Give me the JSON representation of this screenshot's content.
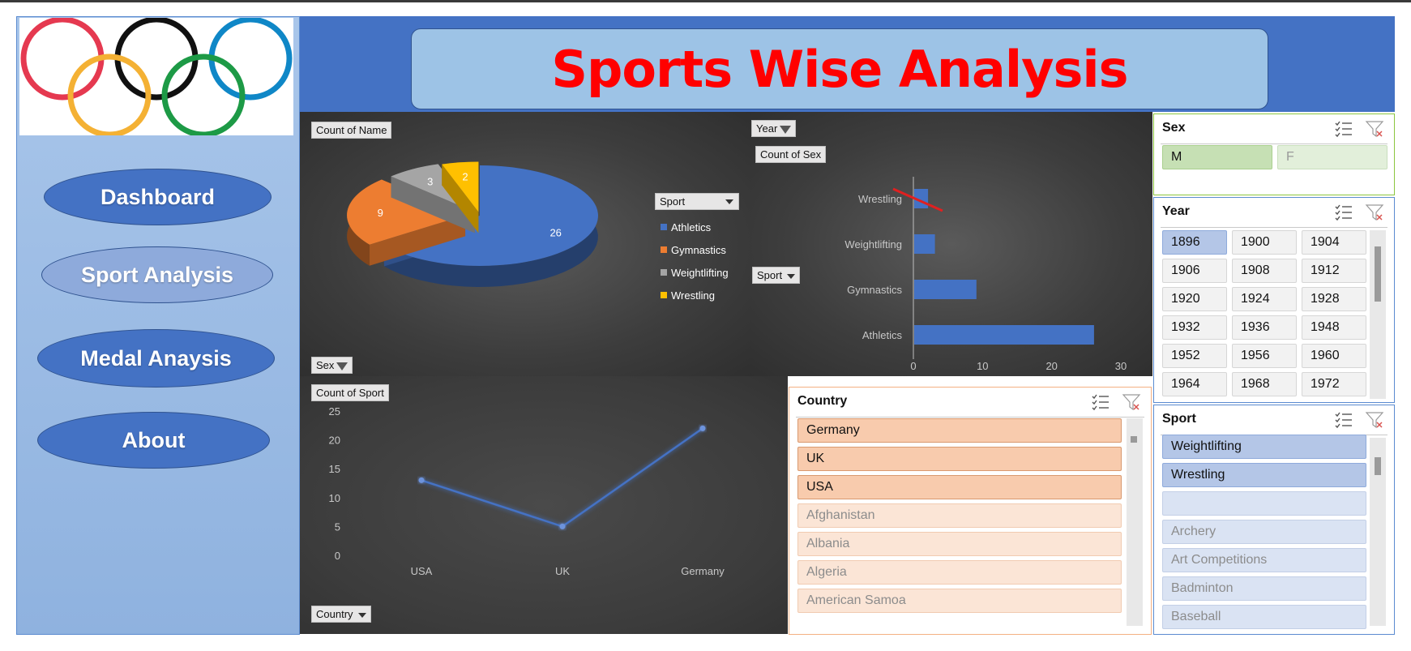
{
  "title": "Sports Wise Analysis",
  "nav": {
    "dashboard": "Dashboard",
    "sport_analysis": "Sport Analysis",
    "medal_analysis": "Medal Anaysis",
    "about": "About"
  },
  "icons": [
    "olympic-rings-logo",
    "multi-select-icon",
    "clear-filter-icon",
    "filter-icon",
    "dropdown-arrow-icon"
  ],
  "colors": {
    "accent": "#4472c4",
    "title": "#ff0000",
    "panel": "#9dc3e6",
    "country_selected": "#f8cbad",
    "sex_selected": "#c6e0b4",
    "sport_selected": "#b4c6e7"
  },
  "pie_panel": {
    "value_button": "Count of Name",
    "filter_button": "Sex",
    "legend_button": "Sport"
  },
  "bar_panel": {
    "filter_button": "Year",
    "value_button": "Count of Sex",
    "axis_button": "Sport"
  },
  "line_panel": {
    "value_button": "Count of Sport",
    "axis_button": "Country"
  },
  "chart_data": [
    {
      "type": "pie",
      "title": "",
      "categories": [
        "Athletics",
        "Gymnastics",
        "Weightlifting",
        "Wrestling"
      ],
      "values": [
        26,
        9,
        3,
        2
      ],
      "colors": [
        "#4472c4",
        "#ed7d31",
        "#a5a5a5",
        "#ffc000"
      ],
      "legend": "right"
    },
    {
      "type": "bar",
      "orientation": "horizontal",
      "categories": [
        "Athletics",
        "Gymnastics",
        "Weightlifting",
        "Wrestling"
      ],
      "values": [
        26,
        9,
        3,
        2
      ],
      "xlim": [
        0,
        30
      ],
      "xticks": [
        "0",
        "10",
        "20",
        "30"
      ]
    },
    {
      "type": "line",
      "categories": [
        "USA",
        "UK",
        "Germany"
      ],
      "values": [
        13,
        5,
        22
      ],
      "ylim": [
        0,
        25
      ],
      "yticks": [
        "0",
        "5",
        "10",
        "15",
        "20",
        "25"
      ]
    }
  ],
  "slicers": {
    "sex": {
      "title": "Sex",
      "items": [
        {
          "label": "M",
          "selected": true
        },
        {
          "label": "F",
          "selected": false
        }
      ]
    },
    "year": {
      "title": "Year",
      "items": [
        {
          "label": "1896",
          "selected": true
        },
        {
          "label": "1900"
        },
        {
          "label": "1904"
        },
        {
          "label": "1906"
        },
        {
          "label": "1908"
        },
        {
          "label": "1912"
        },
        {
          "label": "1920"
        },
        {
          "label": "1924"
        },
        {
          "label": "1928"
        },
        {
          "label": "1932"
        },
        {
          "label": "1936"
        },
        {
          "label": "1948"
        },
        {
          "label": "1952"
        },
        {
          "label": "1956"
        },
        {
          "label": "1960"
        },
        {
          "label": "1964"
        },
        {
          "label": "1968"
        },
        {
          "label": "1972"
        }
      ]
    },
    "country": {
      "title": "Country",
      "items": [
        {
          "label": "Germany",
          "selected": true
        },
        {
          "label": "UK",
          "selected": true
        },
        {
          "label": "USA",
          "selected": true
        },
        {
          "label": "Afghanistan",
          "selected": false
        },
        {
          "label": "Albania",
          "selected": false
        },
        {
          "label": "Algeria",
          "selected": false
        },
        {
          "label": "American Samoa",
          "selected": false
        }
      ]
    },
    "sport": {
      "title": "Sport",
      "items": [
        {
          "label": "Weightlifting",
          "selected": true
        },
        {
          "label": "Wrestling",
          "selected": true
        },
        {
          "label": "",
          "selected": false
        },
        {
          "label": "Archery",
          "selected": false
        },
        {
          "label": "Art Competitions",
          "selected": false
        },
        {
          "label": "Badminton",
          "selected": false
        },
        {
          "label": "Baseball",
          "selected": false
        }
      ]
    }
  }
}
